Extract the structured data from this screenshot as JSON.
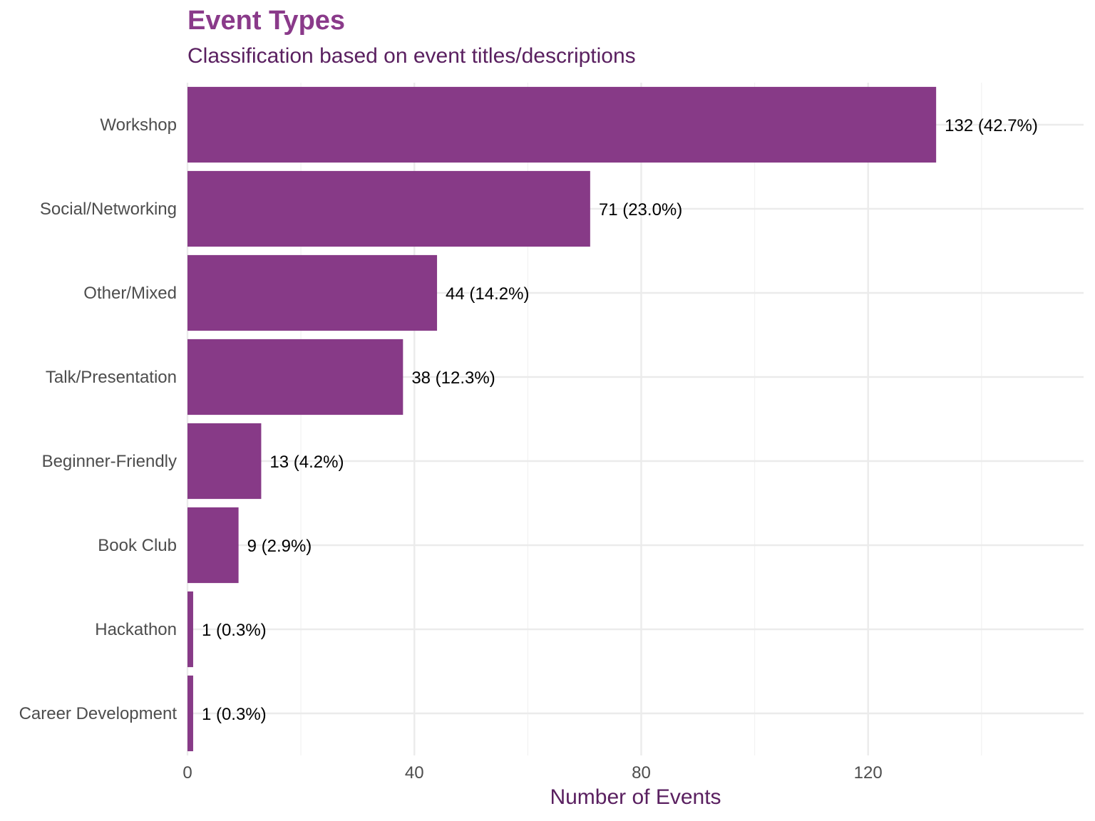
{
  "chart_data": {
    "type": "bar",
    "orientation": "horizontal",
    "title": "Event Types",
    "subtitle": "Classification based on event titles/descriptions",
    "xlabel": "Number of Events",
    "ylabel": "",
    "xlim": [
      0,
      158
    ],
    "xticks": [
      0,
      40,
      80,
      120
    ],
    "grid": true,
    "bar_color": "#873a87",
    "title_color": "#8a3a8a",
    "subtitle_color": "#5a2060",
    "categories": [
      "Workshop",
      "Social/Networking",
      "Other/Mixed",
      "Talk/Presentation",
      "Beginner-Friendly",
      "Book Club",
      "Hackathon",
      "Career Development"
    ],
    "values": [
      132,
      71,
      44,
      38,
      13,
      9,
      1,
      1
    ],
    "labels": [
      "132 (42.7%)",
      "71 (23.0%)",
      "44 (14.2%)",
      "38 (12.3%)",
      "13 (4.2%)",
      "9 (2.9%)",
      "1 (0.3%)",
      "1 (0.3%)"
    ]
  }
}
